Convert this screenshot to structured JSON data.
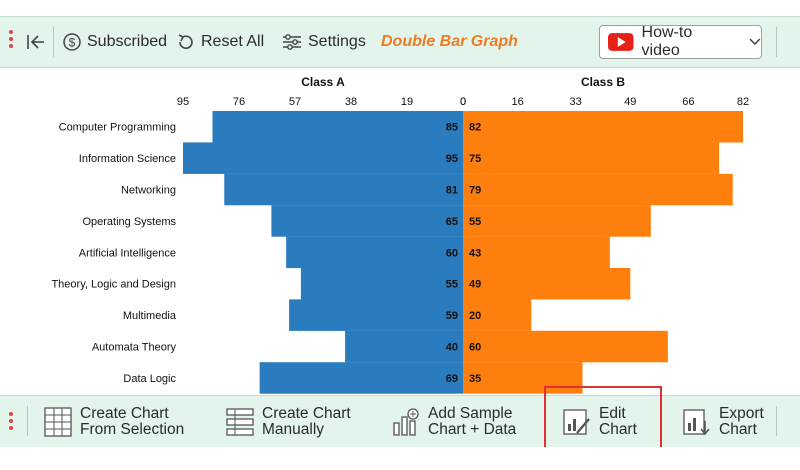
{
  "toolbar": {
    "subscribed_label": "Subscribed",
    "reset_label": "Reset All",
    "settings_label": "Settings",
    "title": "Double Bar Graph",
    "video_label": "How-to video"
  },
  "bottom_toolbar": {
    "create_selection": [
      "Create Chart",
      "From Selection"
    ],
    "create_manual": [
      "Create Chart",
      "Manually"
    ],
    "add_sample": [
      "Add Sample",
      "Chart + Data"
    ],
    "edit_chart": [
      "Edit",
      "Chart"
    ],
    "export_chart": [
      "Export",
      "Chart"
    ]
  },
  "colors": {
    "class_a": "#2b7bbf",
    "class_b": "#ff7f0e",
    "accent": "#f07b22",
    "highlight": "#e03131",
    "toolbar_bg": "#e3f4ea"
  },
  "chart_data": {
    "type": "bar",
    "orientation": "horizontal",
    "layout": "butterfly",
    "categories": [
      "Computer Programming",
      "Information Science",
      "Networking",
      "Operating Systems",
      "Artificial Intelligence",
      "Theory, Logic and Design",
      "Multimedia",
      "Automata Theory",
      "Data Logic"
    ],
    "series": [
      {
        "name": "Class A",
        "values": [
          85,
          95,
          81,
          65,
          60,
          55,
          59,
          40,
          69
        ],
        "ticks": [
          95,
          76,
          57,
          38,
          19,
          0
        ],
        "xlim": [
          0,
          95
        ]
      },
      {
        "name": "Class B",
        "values": [
          82,
          75,
          79,
          55,
          43,
          49,
          20,
          60,
          35
        ],
        "ticks": [
          0,
          16,
          33,
          49,
          66,
          82
        ],
        "xlim": [
          0,
          82
        ]
      }
    ],
    "data_labels": true,
    "grid": false
  }
}
